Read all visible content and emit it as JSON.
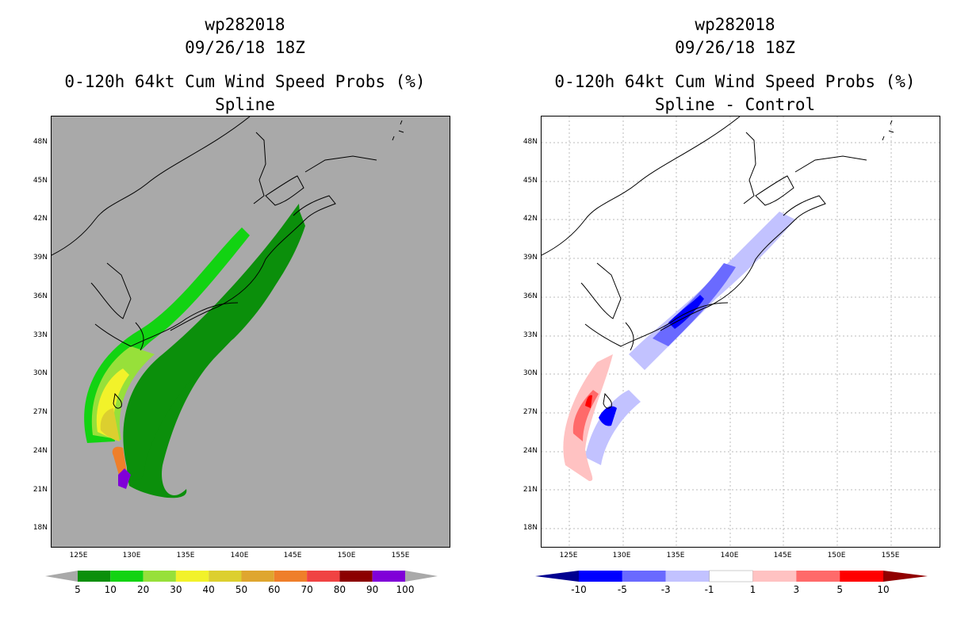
{
  "left_panel": {
    "title_line1": "wp282018",
    "title_line2": "09/26/18 18Z",
    "title_line3": "0-120h 64kt Cum Wind Speed Probs (%)",
    "title_line4": "Spline",
    "background_color": "#a9a9a9",
    "colorbar": {
      "labels": [
        "5",
        "10",
        "20",
        "30",
        "40",
        "50",
        "60",
        "70",
        "80",
        "90",
        "100"
      ],
      "colors": [
        "#0b8f0b",
        "#12d312",
        "#97e03a",
        "#f2f22a",
        "#dccf2f",
        "#dfa62f",
        "#ef7f2a",
        "#f04343",
        "#8c0000",
        "#8000d8"
      ]
    }
  },
  "right_panel": {
    "title_line1": "wp282018",
    "title_line2": "09/26/18 18Z",
    "title_line3": "0-120h 64kt Cum Wind Speed Probs (%)",
    "title_line4": "Spline - Control",
    "background_color": "#ffffff",
    "colorbar": {
      "labels": [
        "-10",
        "-5",
        "-3",
        "-1",
        "1",
        "3",
        "5",
        "10"
      ],
      "colors": [
        "#000090",
        "#0000ff",
        "#6a6aff",
        "#c2c2ff",
        "#ffffff",
        "#ffc2c2",
        "#ff6a6a",
        "#ff0000",
        "#900000"
      ]
    }
  },
  "axes": {
    "lat_labels": [
      "48N",
      "45N",
      "42N",
      "39N",
      "36N",
      "33N",
      "30N",
      "27N",
      "24N",
      "21N",
      "18N"
    ],
    "lon_labels": [
      "125E",
      "130E",
      "135E",
      "140E",
      "145E",
      "150E",
      "155E"
    ]
  }
}
